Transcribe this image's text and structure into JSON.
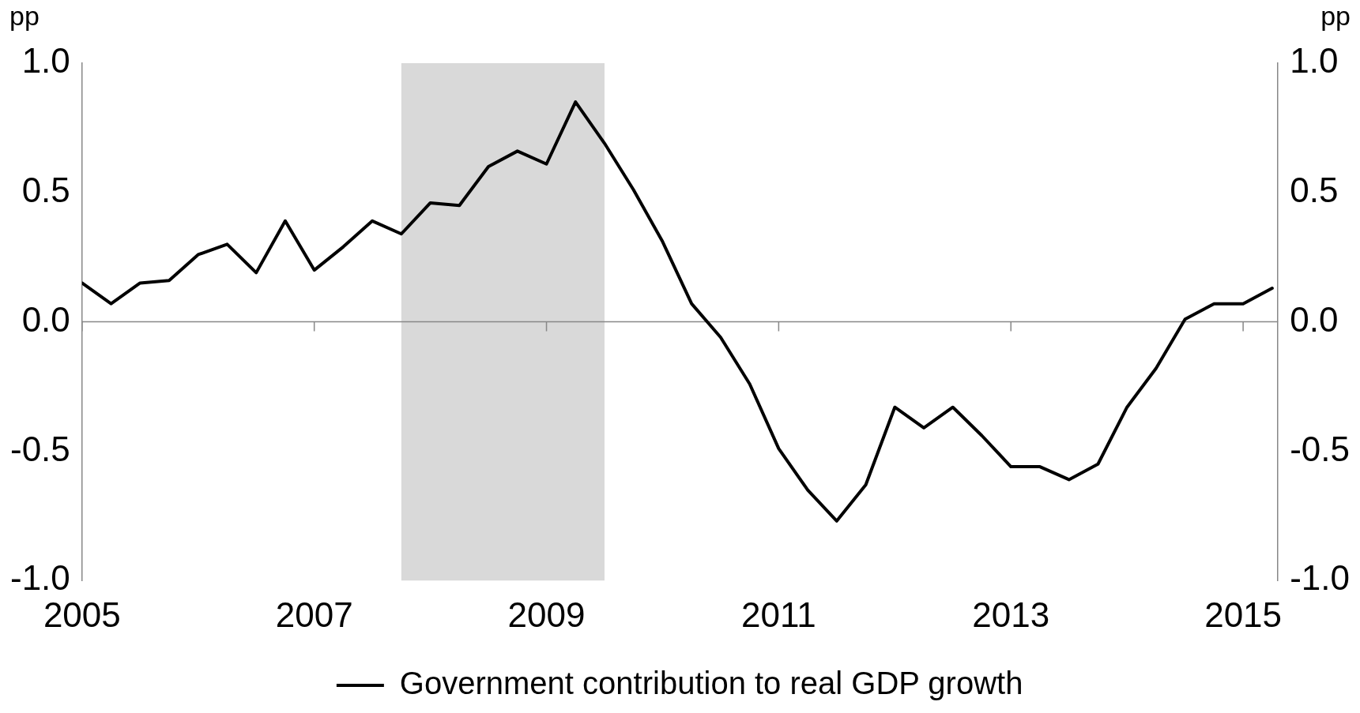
{
  "chart_data": {
    "type": "line",
    "ylabel": "pp",
    "y2label": "pp",
    "x": [
      2005,
      2005.25,
      2005.5,
      2005.75,
      2006,
      2006.25,
      2006.5,
      2006.75,
      2007,
      2007.25,
      2007.5,
      2007.75,
      2008,
      2008.25,
      2008.5,
      2008.75,
      2009,
      2009.25,
      2009.5,
      2009.75,
      2010,
      2010.25,
      2010.5,
      2010.75,
      2011,
      2011.25,
      2011.5,
      2011.75,
      2012,
      2012.25,
      2012.5,
      2012.75,
      2013,
      2013.25,
      2013.5,
      2013.75,
      2014,
      2014.25,
      2014.5,
      2014.75,
      2015,
      2015.25
    ],
    "series": [
      {
        "name": "Government contribution to real GDP growth",
        "color": "#000000",
        "values": [
          0.15,
          0.07,
          0.15,
          0.16,
          0.26,
          0.3,
          0.19,
          0.39,
          0.2,
          0.29,
          0.39,
          0.34,
          0.46,
          0.45,
          0.6,
          0.66,
          0.61,
          0.85,
          0.69,
          0.51,
          0.31,
          0.07,
          -0.06,
          -0.24,
          -0.49,
          -0.65,
          -0.77,
          -0.63,
          -0.33,
          -0.41,
          -0.33,
          -0.44,
          -0.56,
          -0.56,
          -0.61,
          -0.55,
          -0.33,
          -0.18,
          0.01,
          0.07,
          0.07,
          0.13
        ]
      }
    ],
    "xlim": [
      2005,
      2015.3
    ],
    "xticks": [
      2005,
      2007,
      2009,
      2011,
      2013,
      2015
    ],
    "ylim": [
      -1,
      1
    ],
    "yticks": [
      {
        "value": -1,
        "label": "-1.0"
      },
      {
        "value": -0.5,
        "label": "-0.5"
      },
      {
        "value": 0,
        "label": "0.0"
      },
      {
        "value": 0.5,
        "label": "0.5"
      },
      {
        "value": 1,
        "label": "1.0"
      }
    ],
    "y2lim": [
      -1,
      1
    ],
    "y2ticks": [
      {
        "value": -1,
        "label": "-1.0"
      },
      {
        "value": -0.5,
        "label": "-0.5"
      },
      {
        "value": 0,
        "label": "0.0"
      },
      {
        "value": 0.5,
        "label": "0.5"
      },
      {
        "value": 1,
        "label": "1.0"
      }
    ],
    "ref_lines": [
      {
        "axis": "y",
        "value": 0,
        "color": "#888888"
      }
    ],
    "bands": [
      {
        "axis": "x",
        "from": 2007.75,
        "to": 2009.5,
        "color": "#d9d9d9"
      }
    ],
    "grid": false,
    "legend": "bottom",
    "line_style": "solid",
    "marker": "none"
  }
}
